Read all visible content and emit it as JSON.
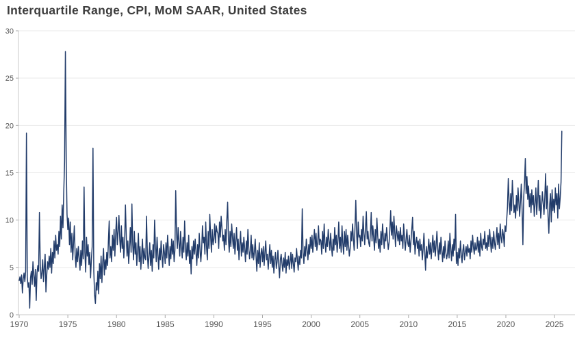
{
  "page": {
    "background_color": "#ffffff"
  },
  "header": {
    "title": "Interquartile Range, CPI, MoM SAAR, United States"
  },
  "chart_data": {
    "type": "line",
    "title": "Interquartile Range, CPI, MoM SAAR, United States",
    "xlabel": "",
    "ylabel": "",
    "legend": "none",
    "grid": "horizontal",
    "ylim": [
      0,
      30
    ],
    "y_ticks": [
      0,
      5,
      10,
      15,
      20,
      25,
      30
    ],
    "x_ticks": [
      1970,
      1975,
      1980,
      1985,
      1990,
      1995,
      2000,
      2005,
      2010,
      2015,
      2020,
      2025
    ],
    "frequency": "monthly",
    "start": {
      "year": 1970,
      "month": 1
    },
    "end": {
      "year": 2025,
      "month": 10
    },
    "line_color": "#223c6a",
    "grid_color": "#e9e9e9",
    "axis_color": "#c9c9c9",
    "tick_mark_color": "#aaaaaa",
    "tick_label_color": "#555555",
    "title_color": "#3d3d3d",
    "series": [
      {
        "name": "Interquartile Range, CPI, MoM SAAR, United States",
        "values_by_year": {
          "1970": [
            3.6,
            4.0,
            3.3,
            4.2,
            2.3,
            3.8,
            4.4,
            3.5,
            4.6,
            19.2,
            4.0,
            2.9
          ],
          "1971": [
            3.4,
            0.7,
            3.9,
            4.6,
            3.2,
            5.6,
            4.2,
            3.0,
            4.8,
            1.5,
            4.4,
            5.2
          ],
          "1972": [
            4.6,
            10.8,
            5.4,
            3.8,
            4.4,
            5.8,
            3.5,
            5.0,
            6.4,
            2.4,
            4.2,
            5.6
          ],
          "1973": [
            4.8,
            6.2,
            5.0,
            7.0,
            4.4,
            6.6,
            5.4,
            7.8,
            6.0,
            8.4,
            6.8,
            7.4
          ],
          "1974": [
            6.4,
            8.8,
            7.2,
            10.4,
            8.0,
            11.6,
            9.2,
            13.0,
            16.2,
            27.8,
            16.4,
            10.6
          ],
          "1975": [
            9.0,
            10.2,
            7.4,
            9.8,
            6.6,
            8.6,
            5.8,
            7.6,
            9.4,
            6.4,
            5.0,
            7.0
          ],
          "1976": [
            5.6,
            7.2,
            6.0,
            4.7,
            6.8,
            5.2,
            7.8,
            5.9,
            13.5,
            6.6,
            4.5,
            8.2
          ],
          "1977": [
            6.2,
            7.4,
            5.3,
            6.6,
            3.9,
            5.8,
            7.2,
            17.6,
            4.6,
            2.1,
            1.2,
            3.4
          ],
          "1978": [
            2.6,
            4.6,
            2.2,
            5.4,
            3.8,
            6.2,
            3.4,
            5.6,
            7.0,
            4.2,
            5.8,
            4.8
          ],
          "1979": [
            6.6,
            5.2,
            7.8,
            9.9,
            6.0,
            7.2,
            5.6,
            8.4,
            6.8,
            9.0,
            6.2,
            8.6
          ],
          "1980": [
            10.3,
            7.4,
            8.8,
            10.5,
            8.0,
            6.6,
            9.4,
            7.0,
            8.2,
            6.0,
            7.6,
            11.6
          ],
          "1981": [
            8.4,
            6.2,
            7.8,
            5.4,
            7.0,
            9.2,
            6.6,
            11.7,
            7.4,
            5.8,
            8.8,
            6.4
          ],
          "1982": [
            7.6,
            5.2,
            6.8,
            8.6,
            5.6,
            7.2,
            4.8,
            6.4,
            8.0,
            5.4,
            7.0,
            6.0
          ],
          "1983": [
            5.8,
            10.4,
            6.6,
            4.9,
            6.2,
            7.6,
            5.2,
            6.8,
            4.6,
            7.4,
            6.0,
            10.0
          ],
          "1984": [
            7.2,
            5.6,
            8.2,
            6.4,
            4.8,
            7.0,
            5.8,
            7.8,
            6.2,
            5.0,
            7.4,
            6.6
          ],
          "1985": [
            5.4,
            7.6,
            6.0,
            8.4,
            6.8,
            5.2,
            7.2,
            5.9,
            8.0,
            6.4,
            7.8,
            5.6
          ],
          "1986": [
            6.8,
            13.1,
            8.6,
            7.0,
            9.2,
            7.6,
            6.2,
            8.8,
            7.2,
            6.0,
            8.2,
            6.6
          ],
          "1987": [
            9.9,
            7.0,
            5.8,
            7.6,
            6.2,
            8.4,
            5.4,
            6.8,
            4.3,
            7.2,
            5.9,
            7.8
          ],
          "1988": [
            6.4,
            8.0,
            6.6,
            5.2,
            7.4,
            6.0,
            8.6,
            6.8,
            5.6,
            7.0,
            9.4,
            7.6
          ],
          "1989": [
            8.2,
            6.4,
            9.8,
            7.2,
            5.8,
            8.8,
            7.0,
            10.6,
            8.4,
            6.6,
            9.0,
            7.4
          ],
          "1990": [
            8.0,
            9.6,
            7.6,
            9.4,
            8.8,
            8.6,
            7.0,
            9.8,
            8.2,
            10.4,
            9.2,
            7.8
          ],
          "1991": [
            8.4,
            6.8,
            9.0,
            7.4,
            10.0,
            11.9,
            8.0,
            6.6,
            8.8,
            7.2,
            9.6,
            8.2
          ],
          "1992": [
            7.0,
            8.6,
            6.4,
            7.8,
            9.2,
            6.8,
            8.0,
            5.8,
            7.4,
            8.8,
            6.2,
            7.6
          ],
          "1993": [
            6.6,
            8.2,
            7.0,
            5.6,
            7.8,
            6.4,
            9.0,
            7.2,
            5.9,
            6.8,
            8.4,
            6.0
          ],
          "1994": [
            7.4,
            5.8,
            6.6,
            8.0,
            6.2,
            4.6,
            6.8,
            5.4,
            7.6,
            5.0,
            6.4,
            7.0
          ],
          "1995": [
            5.6,
            7.2,
            5.2,
            6.6,
            7.8,
            5.8,
            6.4,
            4.8,
            6.0,
            7.4,
            5.4,
            6.8
          ],
          "1996": [
            5.0,
            6.2,
            4.4,
            5.8,
            6.6,
            4.9,
            5.6,
            6.8,
            5.2,
            3.9,
            5.8,
            6.4
          ],
          "1997": [
            5.4,
            4.6,
            6.0,
            5.0,
            6.6,
            4.4,
            5.8,
            5.2,
            6.2,
            4.8,
            5.6,
            6.6
          ],
          "1998": [
            4.9,
            6.4,
            5.4,
            4.5,
            6.0,
            5.6,
            7.0,
            5.8,
            4.7,
            6.2,
            5.3,
            6.8
          ],
          "1999": [
            6.0,
            11.2,
            6.6,
            5.4,
            7.2,
            6.2,
            8.0,
            6.8,
            5.8,
            7.4,
            6.4,
            8.2
          ],
          "2000": [
            7.0,
            8.4,
            6.6,
            7.8,
            9.0,
            7.2,
            8.6,
            6.8,
            7.6,
            9.4,
            7.4,
            8.0
          ],
          "2001": [
            7.8,
            6.4,
            8.8,
            7.0,
            9.6,
            7.6,
            6.6,
            8.2,
            7.2,
            9.0,
            7.8,
            6.8
          ],
          "2002": [
            8.6,
            7.2,
            6.2,
            8.0,
            6.8,
            9.2,
            7.4,
            8.4,
            6.6,
            7.8,
            9.8,
            7.0
          ],
          "2003": [
            8.2,
            6.6,
            9.4,
            7.6,
            6.4,
            8.8,
            7.2,
            9.0,
            6.8,
            8.4,
            7.4,
            6.2
          ],
          "2004": [
            7.0,
            8.8,
            7.8,
            9.6,
            8.0,
            6.8,
            9.2,
            12.1,
            8.6,
            7.0,
            9.8,
            8.2
          ],
          "2005": [
            8.4,
            7.2,
            9.0,
            7.8,
            10.4,
            8.6,
            7.4,
            9.2,
            10.9,
            8.0,
            8.8,
            7.6
          ],
          "2006": [
            7.2,
            8.6,
            10.8,
            7.8,
            9.4,
            8.2,
            6.8,
            9.0,
            7.6,
            10.2,
            8.4,
            7.0
          ],
          "2007": [
            8.0,
            6.6,
            8.8,
            7.4,
            9.6,
            8.2,
            7.0,
            8.6,
            7.8,
            9.2,
            8.0,
            6.9
          ],
          "2008": [
            7.6,
            9.0,
            11.0,
            8.4,
            9.8,
            8.0,
            10.4,
            8.8,
            7.2,
            9.4,
            8.6,
            7.8
          ],
          "2009": [
            8.8,
            7.4,
            9.2,
            7.8,
            8.4,
            7.0,
            9.6,
            8.2,
            6.8,
            8.0,
            9.0,
            7.6
          ],
          "2010": [
            7.2,
            8.4,
            6.6,
            7.8,
            9.0,
            10.3,
            7.4,
            8.8,
            6.4,
            7.6,
            8.2,
            7.0
          ],
          "2011": [
            7.8,
            6.2,
            8.0,
            6.8,
            7.4,
            5.8,
            7.0,
            8.6,
            6.6,
            4.7,
            7.2,
            6.0
          ],
          "2012": [
            6.8,
            8.0,
            6.4,
            7.6,
            5.9,
            7.2,
            8.4,
            6.6,
            7.8,
            6.2,
            7.4,
            8.8
          ],
          "2013": [
            7.0,
            5.8,
            7.6,
            6.4,
            8.2,
            6.8,
            5.6,
            7.2,
            6.0,
            7.8,
            6.6,
            5.9
          ],
          "2014": [
            6.4,
            7.8,
            6.0,
            8.6,
            7.0,
            5.7,
            7.4,
            6.2,
            8.0,
            6.8,
            10.6,
            5.4
          ],
          "2015": [
            6.6,
            5.2,
            7.0,
            6.0,
            7.8,
            6.4,
            5.5,
            6.8,
            7.4,
            5.8,
            6.6,
            7.2
          ],
          "2016": [
            6.2,
            7.4,
            6.6,
            7.0,
            5.9,
            7.8,
            6.6,
            8.4,
            7.2,
            6.4,
            7.6,
            6.8
          ],
          "2017": [
            7.0,
            8.2,
            6.6,
            7.8,
            6.2,
            8.6,
            7.2,
            6.8,
            8.0,
            7.4,
            8.8,
            7.0
          ],
          "2018": [
            7.6,
            6.8,
            8.4,
            7.2,
            9.0,
            7.8,
            6.6,
            8.2,
            7.0,
            8.8,
            7.6,
            6.9
          ],
          "2019": [
            8.0,
            9.2,
            7.4,
            8.6,
            7.0,
            9.6,
            8.2,
            7.6,
            9.0,
            8.4,
            7.2,
            9.4
          ],
          "2020": [
            8.8,
            10.0,
            11.4,
            14.4,
            12.0,
            10.6,
            12.8,
            11.0,
            14.2,
            12.4,
            10.8,
            11.6
          ],
          "2021": [
            10.2,
            12.6,
            11.0,
            13.4,
            11.8,
            10.4,
            12.0,
            13.8,
            11.2,
            7.4,
            12.4,
            14.0
          ],
          "2022": [
            16.5,
            12.8,
            14.6,
            12.2,
            13.6,
            11.4,
            12.8,
            10.8,
            13.2,
            11.6,
            12.6,
            10.4
          ],
          "2023": [
            11.8,
            13.4,
            10.6,
            12.2,
            14.2,
            11.0,
            12.6,
            10.2,
            11.4,
            13.0,
            11.8,
            10.6
          ],
          "2024": [
            12.4,
            14.9,
            11.2,
            13.6,
            10.4,
            8.6,
            11.6,
            12.8,
            9.8,
            13.2,
            11.0,
            12.2
          ],
          "2025": [
            10.8,
            13.4,
            11.6,
            12.8,
            10.2,
            13.8,
            11.2,
            12.4,
            14.0,
            19.4
          ]
        }
      }
    ]
  }
}
